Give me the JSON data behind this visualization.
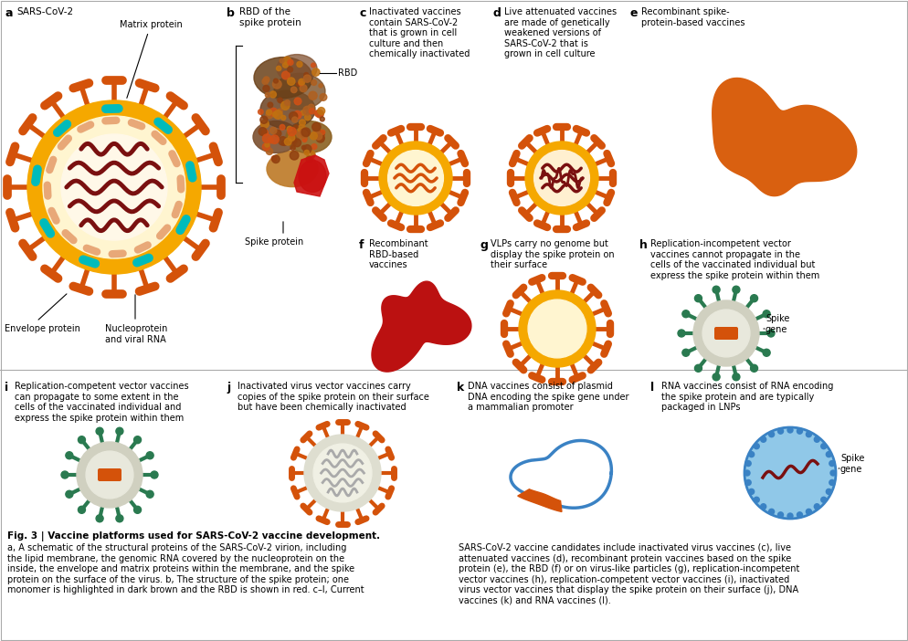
{
  "title": "Fig. 3 | Vaccine platforms used for SARS-CoV-2 vaccine development.",
  "caption_left": "a, A schematic of the structural proteins of the SARS-CoV-2 virion, including\nthe lipid membrane, the genomic RNA covered by the nucleoprotein on the\ninside, the envelope and matrix proteins within the membrane, and the spike\nprotein on the surface of the virus. b, The structure of the spike protein; one\nmonomer is highlighted in dark brown and the RBD is shown in red. c–l, Current",
  "caption_right": "SARS-CoV-2 vaccine candidates include inactivated virus vaccines (c), live\nattenuated vaccines (d), recombinant protein vaccines based on the spike\nprotein (e), the RBD (f) or on virus-like particles (g), replication-incompetent\nvector vaccines (h), replication-competent vector vaccines (i), inactivated\nvirus vector vaccines that display the spike protein on their surface (j), DNA\nvaccines (k) and RNA vaccines (l).",
  "bg_color": "#ffffff",
  "colors": {
    "orange_spike": "#D4520A",
    "orange_membrane": "#F5A800",
    "light_yellow": "#FFF5D0",
    "dark_red_rna": "#7A1010",
    "cyan": "#00AAAA",
    "salmon": "#E8A878",
    "green_vector": "#2A7A50",
    "blue_dna": "#3A82C4",
    "light_blue_lnp": "#90C8E8",
    "gray_light": "#DCDCD0",
    "red_rbd": "#BB1111",
    "orange_recomb": "#D96010",
    "brown_spike_protein": "#6B3A1A",
    "golden_spike": "#C07020"
  }
}
